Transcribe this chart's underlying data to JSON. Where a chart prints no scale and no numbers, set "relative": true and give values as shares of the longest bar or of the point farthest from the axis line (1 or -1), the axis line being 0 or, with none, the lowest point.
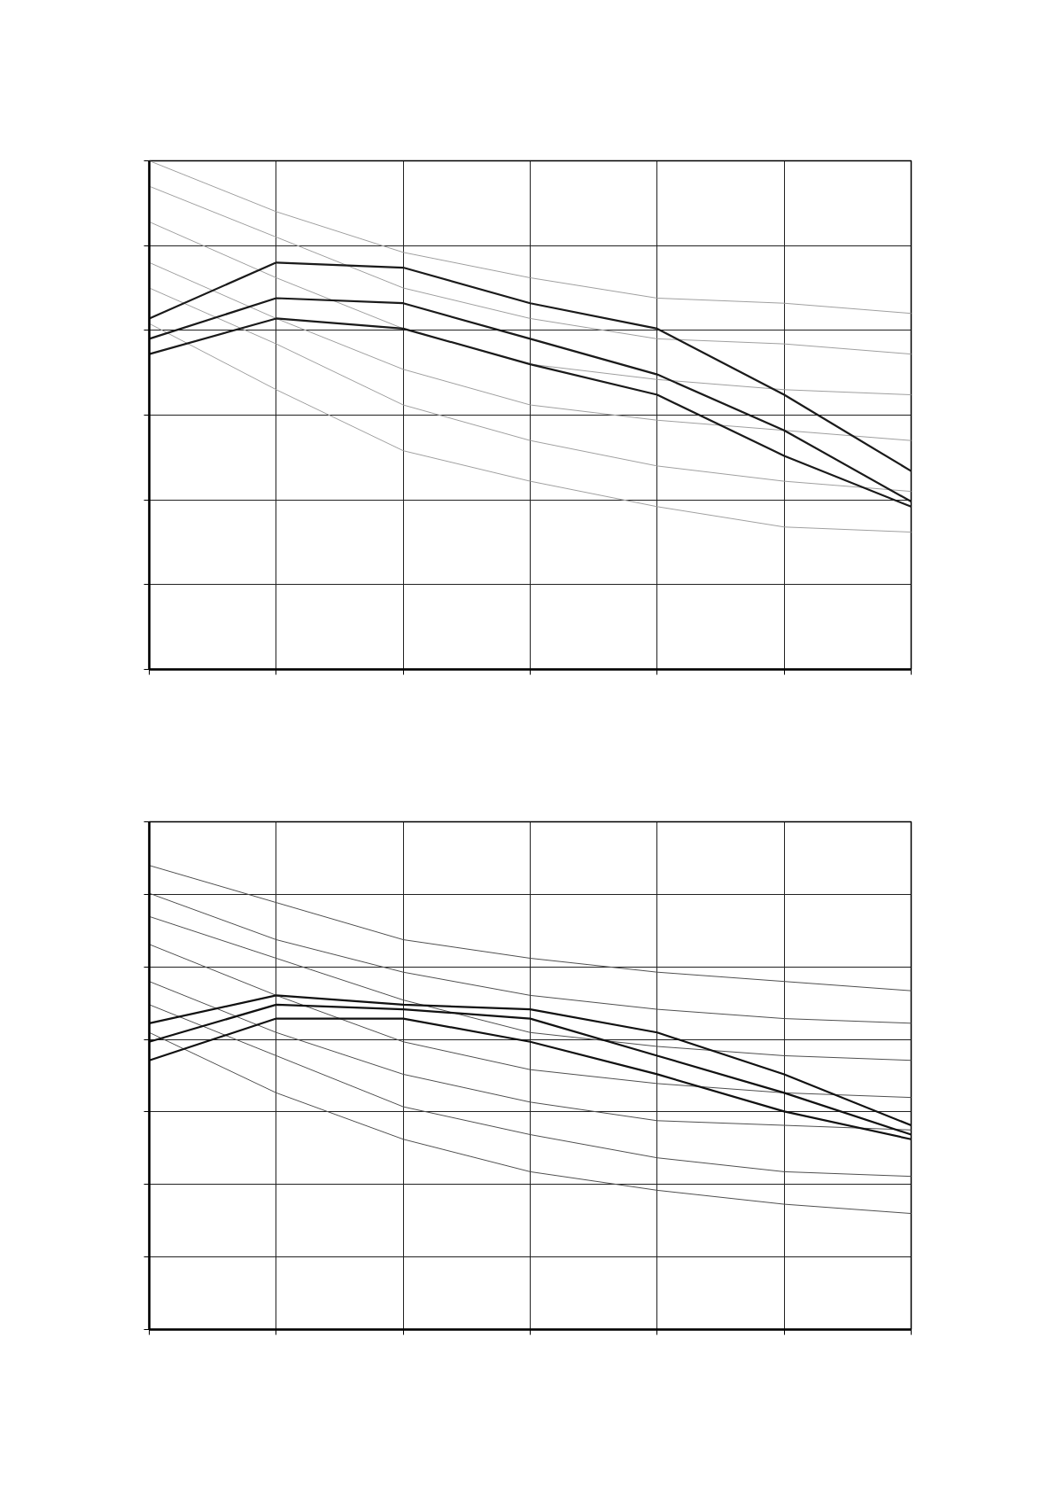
{
  "chart_data": [
    {
      "type": "line",
      "relative": true,
      "grid": true,
      "categories": [
        null,
        null,
        null,
        null,
        null,
        null,
        null
      ],
      "series": [
        {
          "color": "#a0a0a0",
          "values": [
            1.0,
            0.9,
            0.82,
            0.77,
            0.73,
            0.72,
            0.7
          ]
        },
        {
          "color": "#a0a0a0",
          "values": [
            0.95,
            0.85,
            0.75,
            0.69,
            0.65,
            0.64,
            0.62
          ]
        },
        {
          "color": "#a0a0a0",
          "values": [
            0.88,
            0.77,
            0.67,
            0.6,
            0.57,
            0.55,
            0.54
          ]
        },
        {
          "color": "#a0a0a0",
          "values": [
            0.8,
            0.69,
            0.59,
            0.52,
            0.49,
            0.47,
            0.45
          ]
        },
        {
          "color": "#a0a0a0",
          "values": [
            0.75,
            0.64,
            0.52,
            0.45,
            0.4,
            0.37,
            0.35
          ]
        },
        {
          "color": "#a0a0a0",
          "values": [
            0.68,
            0.55,
            0.43,
            0.37,
            0.32,
            0.28,
            0.27
          ]
        },
        {
          "color": "#1a1a1a",
          "values": [
            0.69,
            0.8,
            0.79,
            0.72,
            0.67,
            0.54,
            0.39
          ]
        },
        {
          "color": "#1a1a1a",
          "values": [
            0.65,
            0.73,
            0.72,
            0.65,
            0.58,
            0.47,
            0.33
          ]
        },
        {
          "color": "#1a1a1a",
          "values": [
            0.62,
            0.69,
            0.67,
            0.6,
            0.54,
            0.42,
            0.32
          ]
        }
      ]
    },
    {
      "type": "line",
      "relative": true,
      "grid": true,
      "categories": [
        null,
        null,
        null,
        null,
        null,
        null,
        null
      ],
      "series": [
        {
          "color": "#505050",
          "values": [
            1.0,
            0.92,
            0.84,
            0.8,
            0.77,
            0.75,
            0.73
          ]
        },
        {
          "color": "#505050",
          "values": [
            0.94,
            0.84,
            0.77,
            0.72,
            0.69,
            0.67,
            0.66
          ]
        },
        {
          "color": "#505050",
          "values": [
            0.89,
            0.8,
            0.71,
            0.64,
            0.61,
            0.59,
            0.58
          ]
        },
        {
          "color": "#505050",
          "values": [
            0.83,
            0.72,
            0.62,
            0.56,
            0.53,
            0.51,
            0.5
          ]
        },
        {
          "color": "#505050",
          "values": [
            0.75,
            0.64,
            0.55,
            0.49,
            0.45,
            0.44,
            0.43
          ]
        },
        {
          "color": "#505050",
          "values": [
            0.7,
            0.59,
            0.48,
            0.42,
            0.37,
            0.34,
            0.33
          ]
        },
        {
          "color": "#505050",
          "values": [
            0.64,
            0.51,
            0.41,
            0.34,
            0.3,
            0.27,
            0.25
          ]
        },
        {
          "color": "#111111",
          "values": [
            0.66,
            0.72,
            0.7,
            0.69,
            0.64,
            0.55,
            0.44
          ]
        },
        {
          "color": "#111111",
          "values": [
            0.62,
            0.7,
            0.69,
            0.67,
            0.59,
            0.51,
            0.42
          ]
        },
        {
          "color": "#111111",
          "values": [
            0.58,
            0.67,
            0.67,
            0.62,
            0.55,
            0.47,
            0.41
          ]
        }
      ]
    }
  ]
}
